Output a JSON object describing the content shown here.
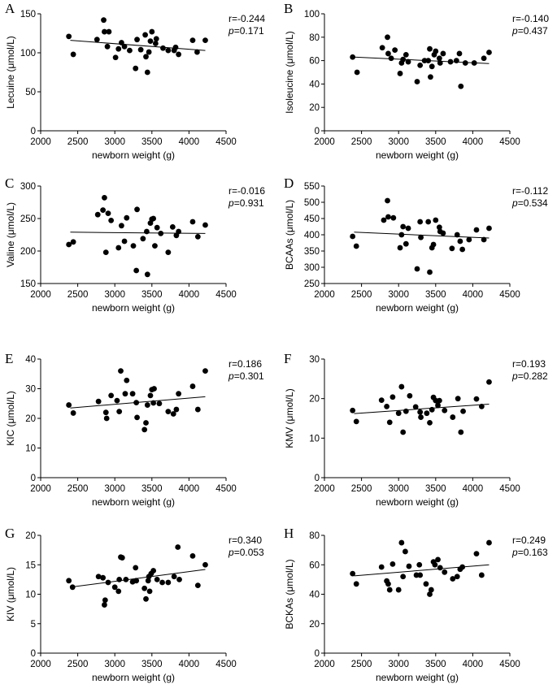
{
  "chart_data": [
    {
      "panel": "A",
      "type": "scatter",
      "ylabel": "Lecuine (μmol/L)",
      "xlabel": "newborn weight (g)",
      "xlim": [
        2000,
        4500
      ],
      "xticks": [
        2000,
        2500,
        3000,
        3500,
        4000,
        4500
      ],
      "ylim": [
        0,
        150
      ],
      "yticks": [
        0,
        50,
        100,
        150
      ],
      "r_text": "r=-0.244",
      "p_label": "p",
      "p_text": "=0.171",
      "trend": {
        "x": [
          2400,
          4220
        ],
        "y": [
          116,
          103
        ]
      },
      "points": {
        "x": [
          2380,
          2440,
          2760,
          2850,
          2860,
          2900,
          2920,
          3010,
          3050,
          3090,
          3130,
          3200,
          3280,
          3300,
          3350,
          3410,
          3420,
          3440,
          3460,
          3480,
          3500,
          3550,
          3560,
          3650,
          3720,
          3800,
          3820,
          3860,
          4050,
          4110,
          4220
        ],
        "y": [
          121,
          98,
          117,
          142,
          127,
          108,
          127,
          94,
          105,
          113,
          108,
          103,
          80,
          117,
          104,
          123,
          95,
          75,
          101,
          115,
          127,
          112,
          118,
          106,
          103,
          103,
          107,
          98,
          116,
          101,
          116
        ]
      }
    },
    {
      "panel": "B",
      "type": "scatter",
      "ylabel": "Isoleucine (μmol/L)",
      "xlabel": "newborn weight (g)",
      "xlim": [
        2000,
        4500
      ],
      "xticks": [
        2000,
        2500,
        3000,
        3500,
        4000,
        4500
      ],
      "ylim": [
        0,
        100
      ],
      "yticks": [
        0,
        20,
        40,
        60,
        80,
        100
      ],
      "r_text": "r=-0.140",
      "p_label": "p",
      "p_text": "=0.437",
      "trend": {
        "x": [
          2400,
          4220
        ],
        "y": [
          63,
          57.5
        ]
      },
      "points": {
        "x": [
          2380,
          2440,
          2780,
          2850,
          2860,
          2900,
          2950,
          3020,
          3040,
          3060,
          3100,
          3130,
          3250,
          3290,
          3350,
          3400,
          3420,
          3430,
          3450,
          3480,
          3500,
          3550,
          3560,
          3600,
          3700,
          3780,
          3820,
          3840,
          3900,
          4020,
          4150,
          4220
        ],
        "y": [
          63,
          50,
          71,
          80,
          66,
          62,
          69,
          49,
          58,
          61,
          65,
          59,
          42,
          56,
          60,
          60,
          70,
          46,
          55,
          65,
          68,
          62,
          58,
          66,
          59,
          60,
          66,
          38,
          58,
          58,
          62,
          67
        ]
      }
    },
    {
      "panel": "C",
      "type": "scatter",
      "ylabel": "Valine (μmol/L)",
      "xlabel": "newborn weight (g)",
      "xlim": [
        2000,
        4500
      ],
      "xticks": [
        2000,
        2500,
        3000,
        3500,
        4000,
        4500
      ],
      "ylim": [
        150,
        300
      ],
      "yticks": [
        150,
        200,
        250,
        300
      ],
      "r_text": "r=-0.016",
      "p_label": "p",
      "p_text": "=0.931",
      "trend": {
        "x": [
          2400,
          4220
        ],
        "y": [
          229,
          227
        ]
      },
      "points": {
        "x": [
          2380,
          2440,
          2770,
          2840,
          2860,
          2880,
          2910,
          2950,
          3050,
          3090,
          3130,
          3160,
          3250,
          3290,
          3300,
          3380,
          3430,
          3440,
          3480,
          3500,
          3520,
          3540,
          3570,
          3620,
          3720,
          3780,
          3830,
          3860,
          4050,
          4120,
          4220
        ],
        "y": [
          210,
          214,
          256,
          263,
          282,
          198,
          258,
          247,
          205,
          239,
          215,
          251,
          208,
          170,
          264,
          219,
          230,
          164,
          243,
          249,
          250,
          208,
          236,
          227,
          198,
          237,
          224,
          230,
          245,
          222,
          240
        ]
      }
    },
    {
      "panel": "D",
      "type": "scatter",
      "ylabel": "BCAAs (μmol/L)",
      "xlabel": "newborn weight (g)",
      "xlim": [
        2000,
        4500
      ],
      "xticks": [
        2000,
        2500,
        3000,
        3500,
        4000,
        4500
      ],
      "ylim": [
        250,
        550
      ],
      "yticks": [
        250,
        300,
        350,
        400,
        450,
        500,
        550
      ],
      "r_text": "r=-0.112",
      "p_label": "p",
      "p_text": "=0.534",
      "trend": {
        "x": [
          2400,
          4220
        ],
        "y": [
          408,
          390
        ]
      },
      "points": {
        "x": [
          2380,
          2430,
          2800,
          2850,
          2860,
          2930,
          3020,
          3040,
          3060,
          3100,
          3130,
          3250,
          3290,
          3300,
          3400,
          3420,
          3450,
          3470,
          3500,
          3550,
          3560,
          3600,
          3720,
          3790,
          3830,
          3860,
          3950,
          4050,
          4150,
          4220
        ],
        "y": [
          395,
          365,
          445,
          505,
          455,
          452,
          360,
          400,
          425,
          372,
          420,
          295,
          440,
          392,
          440,
          285,
          360,
          370,
          445,
          423,
          410,
          405,
          358,
          400,
          380,
          355,
          385,
          415,
          385,
          420
        ]
      }
    },
    {
      "panel": "E",
      "type": "scatter",
      "ylabel": "KIC (μmol/L)",
      "xlabel": "newborn weight (g)",
      "xlim": [
        2000,
        4500
      ],
      "xticks": [
        2000,
        2500,
        3000,
        3500,
        4000,
        4500
      ],
      "ylim": [
        0,
        40
      ],
      "yticks": [
        0,
        10,
        20,
        30,
        40
      ],
      "r_text": "r=0.186",
      "p_label": "p",
      "p_text": "=0.301",
      "trend": {
        "x": [
          2400,
          4220
        ],
        "y": [
          23.5,
          27.3
        ]
      },
      "points": {
        "x": [
          2380,
          2440,
          2780,
          2880,
          2890,
          2950,
          3030,
          3060,
          3080,
          3140,
          3160,
          3240,
          3290,
          3300,
          3400,
          3420,
          3440,
          3480,
          3500,
          3520,
          3530,
          3600,
          3720,
          3790,
          3830,
          3860,
          4050,
          4120,
          4220
        ],
        "y": [
          24.5,
          21.8,
          25.7,
          22,
          20,
          27.7,
          26,
          22.3,
          36,
          28.3,
          32.8,
          28.3,
          25.3,
          20.3,
          16.2,
          18.5,
          24.5,
          27.7,
          29.7,
          25.2,
          30,
          25,
          22.3,
          21.5,
          23,
          28.3,
          30.8,
          23,
          36
        ]
      }
    },
    {
      "panel": "F",
      "type": "scatter",
      "ylabel": "KMV (μmol/L)",
      "xlabel": "newborn weight (g)",
      "xlim": [
        2000,
        4500
      ],
      "xticks": [
        2000,
        2500,
        3000,
        3500,
        4000,
        4500
      ],
      "ylim": [
        0,
        30
      ],
      "yticks": [
        0,
        10,
        20,
        30
      ],
      "r_text": "r=0.193",
      "p_label": "p",
      "p_text": "=0.282",
      "trend": {
        "x": [
          2400,
          4220
        ],
        "y": [
          16.2,
          18.6
        ]
      },
      "points": {
        "x": [
          2380,
          2430,
          2770,
          2840,
          2880,
          2920,
          3000,
          3040,
          3060,
          3100,
          3150,
          3230,
          3290,
          3300,
          3380,
          3420,
          3450,
          3470,
          3500,
          3530,
          3550,
          3620,
          3730,
          3800,
          3840,
          3870,
          4050,
          4120,
          4220
        ],
        "y": [
          17,
          14.2,
          19.6,
          18,
          14,
          20.4,
          16.3,
          23,
          11.5,
          16.8,
          20.7,
          17.9,
          16.6,
          15.3,
          16.3,
          13.9,
          17.2,
          20.3,
          19.5,
          18.3,
          19.5,
          17,
          15.3,
          20,
          11.5,
          16.8,
          19.9,
          18,
          24.2
        ]
      }
    },
    {
      "panel": "G",
      "type": "scatter",
      "ylabel": "KIV (μmol/L)",
      "xlabel": "newborn weight (g)",
      "xlim": [
        2000,
        4500
      ],
      "xticks": [
        2000,
        2500,
        3000,
        3500,
        4000,
        4500
      ],
      "ylim": [
        0,
        20
      ],
      "yticks": [
        0,
        5,
        10,
        15,
        20
      ],
      "r_text": "r=0.340",
      "p_label": "p",
      "p_text": "=0.053",
      "trend": {
        "x": [
          2400,
          4220
        ],
        "y": [
          11.2,
          14.2
        ]
      },
      "points": {
        "x": [
          2380,
          2430,
          2780,
          2840,
          2860,
          2870,
          2910,
          3000,
          3050,
          3060,
          3080,
          3100,
          3150,
          3240,
          3280,
          3290,
          3400,
          3420,
          3450,
          3460,
          3470,
          3490,
          3520,
          3570,
          3640,
          3720,
          3800,
          3850,
          3870,
          4050,
          4120,
          4220
        ],
        "y": [
          12.3,
          11.2,
          13,
          12.8,
          8.2,
          9,
          12,
          11.2,
          10.5,
          12.5,
          16.3,
          16.2,
          12.5,
          12.1,
          14.5,
          12.3,
          11,
          9.2,
          12.3,
          13,
          10.5,
          13.5,
          14,
          12.5,
          12,
          12,
          13,
          18,
          12.5,
          16.5,
          11.5,
          15
        ]
      }
    },
    {
      "panel": "H",
      "type": "scatter",
      "ylabel": "BCKAs (μmol/L)",
      "xlabel": "newborn weight (g)",
      "xlim": [
        2000,
        4500
      ],
      "xticks": [
        2000,
        2500,
        3000,
        3500,
        4000,
        4500
      ],
      "ylim": [
        0,
        80
      ],
      "yticks": [
        0,
        20,
        40,
        60,
        80
      ],
      "r_text": "r=0.249",
      "p_label": "p",
      "p_text": "=0.163",
      "trend": {
        "x": [
          2400,
          4220
        ],
        "y": [
          52.5,
          60
        ]
      },
      "points": {
        "x": [
          2380,
          2430,
          2770,
          2840,
          2860,
          2880,
          2920,
          3000,
          3040,
          3060,
          3090,
          3140,
          3240,
          3280,
          3290,
          3370,
          3420,
          3440,
          3470,
          3490,
          3530,
          3560,
          3620,
          3730,
          3790,
          3830,
          3860,
          4050,
          4120,
          4220
        ],
        "y": [
          54,
          47,
          58.5,
          49,
          47,
          43,
          60.5,
          43,
          75,
          52,
          69,
          59,
          53,
          60,
          53,
          47,
          40,
          43,
          62,
          60,
          63.5,
          58,
          55,
          50.5,
          52,
          57,
          58.5,
          67.5,
          53,
          75
        ]
      }
    }
  ]
}
